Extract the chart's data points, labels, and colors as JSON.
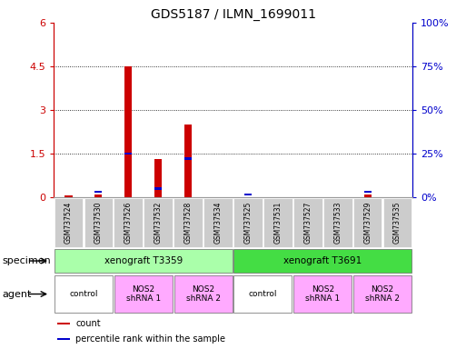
{
  "title": "GDS5187 / ILMN_1699011",
  "samples": [
    "GSM737524",
    "GSM737530",
    "GSM737526",
    "GSM737532",
    "GSM737528",
    "GSM737534",
    "GSM737525",
    "GSM737531",
    "GSM737527",
    "GSM737533",
    "GSM737529",
    "GSM737535"
  ],
  "red_values": [
    0.05,
    0.1,
    4.5,
    1.3,
    2.5,
    0.0,
    0.0,
    0.0,
    0.0,
    0.0,
    0.1,
    0.0
  ],
  "blue_values_pct": [
    0.0,
    3.0,
    25.0,
    5.0,
    22.0,
    0.0,
    1.5,
    0.0,
    0.0,
    0.0,
    3.0,
    0.0
  ],
  "ylim_left": [
    0,
    6
  ],
  "ylim_right": [
    0,
    100
  ],
  "yticks_left": [
    0,
    1.5,
    3,
    4.5,
    6
  ],
  "yticks_left_labels": [
    "0",
    "1.5",
    "3",
    "4.5",
    "6"
  ],
  "yticks_right": [
    0,
    25,
    50,
    75,
    100
  ],
  "yticks_right_labels": [
    "0%",
    "25%",
    "50%",
    "75%",
    "100%"
  ],
  "hlines": [
    1.5,
    3.0,
    4.5
  ],
  "red_color": "#cc0000",
  "blue_color": "#0000cc",
  "bar_width": 0.25,
  "blue_bar_width": 0.25,
  "specimen_labels": [
    "xenograft T3359",
    "xenograft T3691"
  ],
  "specimen_spans_col": [
    [
      0,
      5
    ],
    [
      6,
      11
    ]
  ],
  "specimen_color_1": "#aaffaa",
  "specimen_color_2": "#44dd44",
  "agent_groups": [
    {
      "label": "control",
      "col_span": [
        0,
        1
      ],
      "color": "#ffffff"
    },
    {
      "label": "NOS2\nshRNA 1",
      "col_span": [
        2,
        3
      ],
      "color": "#ffaaff"
    },
    {
      "label": "NOS2\nshRNA 2",
      "col_span": [
        4,
        5
      ],
      "color": "#ffaaff"
    },
    {
      "label": "control",
      "col_span": [
        6,
        7
      ],
      "color": "#ffffff"
    },
    {
      "label": "NOS2\nshRNA 1",
      "col_span": [
        8,
        9
      ],
      "color": "#ffaaff"
    },
    {
      "label": "NOS2\nshRNA 2",
      "col_span": [
        10,
        11
      ],
      "color": "#ffaaff"
    }
  ],
  "legend_items": [
    {
      "color": "#cc0000",
      "label": "count"
    },
    {
      "color": "#0000cc",
      "label": "percentile rank within the sample"
    }
  ],
  "label_specimen": "specimen",
  "label_agent": "agent",
  "gray_box_color": "#cccccc",
  "fig_width": 5.13,
  "fig_height": 3.84,
  "dpi": 100
}
